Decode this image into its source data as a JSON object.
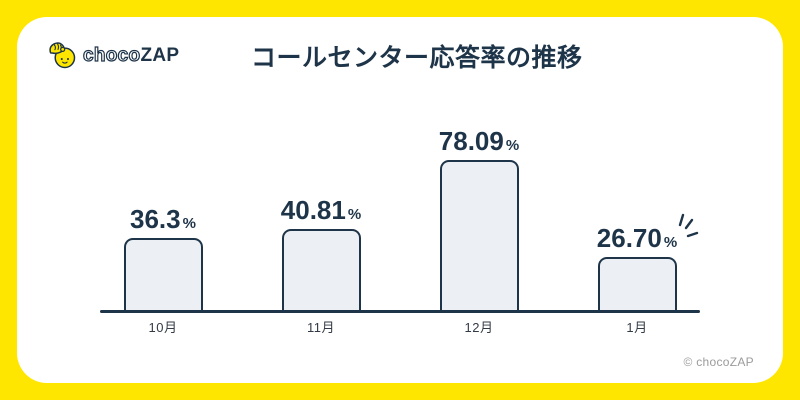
{
  "page": {
    "frame_color": "#FFE600",
    "panel_color": "#FFFFFF",
    "accent_navy": "#1E3449"
  },
  "header": {
    "logo": {
      "mascot_icon": "chocozap-mascot-icon",
      "text_outline_part": "choco",
      "text_solid_part": "ZAP"
    },
    "title": "コールセンター応答率の推移"
  },
  "chart_data": {
    "type": "bar",
    "title": "コールセンター応答率の推移",
    "categories": [
      "10月",
      "11月",
      "12月",
      "1月"
    ],
    "values": [
      36.3,
      40.81,
      78.09,
      26.7
    ],
    "value_labels": [
      "36.3",
      "40.81",
      "78.09",
      "26.70"
    ],
    "unit": "%",
    "ylim": [
      0,
      100
    ],
    "grid": false,
    "legend": false,
    "bar_fill": "#ECF0F4",
    "bar_border": "#1E3449",
    "emphasis": [
      false,
      false,
      false,
      true
    ],
    "emphasis_note": "sparkle emphasis marks beside the 1月 value label"
  },
  "footer": {
    "copyright": "© chocoZAP"
  }
}
